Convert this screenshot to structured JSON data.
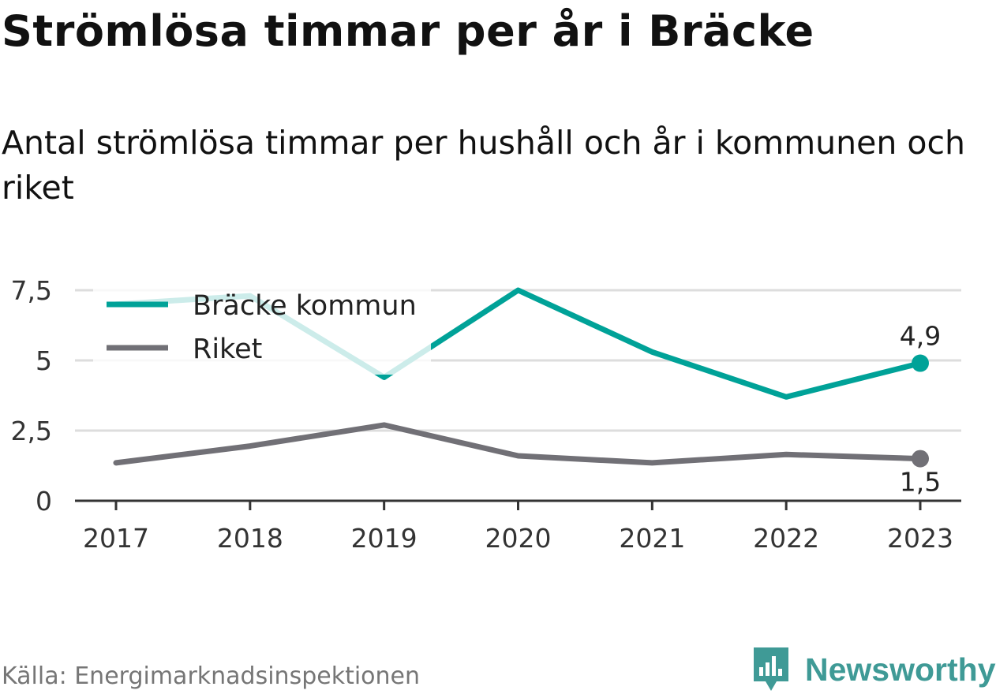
{
  "title": "Strömlösa timmar per år i Bräcke",
  "subtitle": "Antal strömlösa timmar per hushåll och år i kommunen och riket",
  "source": "Källa: Energimarknadsinspektionen",
  "brand": {
    "name": "Newsworthy",
    "icon": "bar-chart-pin-icon",
    "color": "#3f9a96"
  },
  "chart_data": {
    "type": "line",
    "x": [
      "2017",
      "2018",
      "2019",
      "2020",
      "2021",
      "2022",
      "2023"
    ],
    "ylim": [
      0,
      7.5
    ],
    "yticks": [
      0,
      2.5,
      5,
      7.5
    ],
    "ytick_labels": [
      "0",
      "2,5",
      "5",
      "7,5"
    ],
    "grid": true,
    "legend_position": "top-left",
    "series": [
      {
        "name": "Bräcke kommun",
        "color": "#00a298",
        "values": [
          7.0,
          7.3,
          4.4,
          7.5,
          5.3,
          3.7,
          4.9
        ],
        "end_label": "4,9"
      },
      {
        "name": "Riket",
        "color": "#717076",
        "values": [
          1.35,
          1.95,
          2.7,
          1.6,
          1.35,
          1.65,
          1.5
        ],
        "end_label": "1,5"
      }
    ]
  }
}
